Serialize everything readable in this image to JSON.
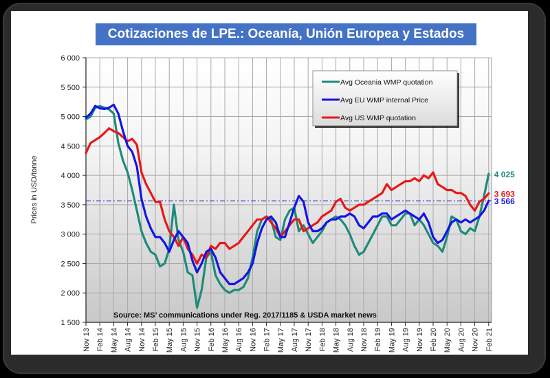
{
  "chart_data": {
    "type": "line",
    "title": "Cotizaciones de LPE.: Oceanía, Unión Europea y  Estados Unidos",
    "xlabel": "",
    "ylabel": "Prices in USD/tonne",
    "ylim": [
      1500,
      6000
    ],
    "yticks": [
      1500,
      2000,
      2500,
      3000,
      3500,
      4000,
      4500,
      5000,
      5500,
      6000
    ],
    "ytick_labels": [
      "1 500",
      "2 000",
      "2 500",
      "3 000",
      "3 500",
      "4 000",
      "4 500",
      "5 000",
      "5 500",
      "6 000"
    ],
    "x_start": "Nov 13",
    "x_end": "Feb 21",
    "xtick_labels": [
      "Nov 13",
      "Feb 14",
      "May 14",
      "Aug 14",
      "Nov 14",
      "Feb 15",
      "May 15",
      "Aug 15",
      "Nov 15",
      "Feb 16",
      "May 16",
      "Aug 16",
      "Nov 16",
      "Feb 17",
      "May 17",
      "Aug 17",
      "Nov 17",
      "Feb 18",
      "May 18",
      "Aug 18",
      "Nov 18",
      "Feb 19",
      "May 19",
      "Aug 19",
      "Nov 19",
      "Feb 20",
      "May 20",
      "Aug 20",
      "Nov 20",
      "Feb 21"
    ],
    "grid": true,
    "legend_position": "top-right",
    "reference_line": {
      "value": 3566,
      "style": "dash-dot",
      "color": "#3b3bd6"
    },
    "series": [
      {
        "name": "Avg Oceania WMP quotation",
        "color": "#1f8a7a",
        "end_label": "4 025",
        "values": [
          4950,
          5000,
          5150,
          5180,
          5150,
          5120,
          5050,
          4550,
          4250,
          4050,
          3750,
          3400,
          3050,
          2850,
          2700,
          2650,
          2450,
          2500,
          2750,
          3500,
          2900,
          2700,
          2350,
          2300,
          1750,
          2050,
          2600,
          2700,
          2300,
          2150,
          2050,
          2000,
          2050,
          2050,
          2100,
          2250,
          2600,
          3050,
          3250,
          3300,
          3250,
          2950,
          2900,
          3250,
          3400,
          3450,
          3050,
          3150,
          3000,
          2850,
          2950,
          3050,
          3200,
          3250,
          3300,
          3250,
          3150,
          3000,
          2800,
          2650,
          2700,
          2850,
          3000,
          3150,
          3300,
          3300,
          3150,
          3150,
          3250,
          3350,
          3350,
          3150,
          3250,
          3150,
          3000,
          2850,
          2800,
          2700,
          2950,
          3300,
          3250,
          3050,
          3000,
          3100,
          3050,
          3300,
          3650,
          4025
        ]
      },
      {
        "name": "Avg EU WMP internal Price",
        "color": "#1414e6",
        "end_label": "3 566",
        "values": [
          4980,
          5050,
          5180,
          5140,
          5130,
          5150,
          5200,
          5050,
          4750,
          4500,
          4400,
          4150,
          3600,
          3300,
          3100,
          2950,
          2950,
          2850,
          2700,
          2900,
          3050,
          2950,
          2850,
          2550,
          2350,
          2500,
          2700,
          2750,
          2600,
          2350,
          2250,
          2150,
          2150,
          2200,
          2250,
          2350,
          2500,
          2850,
          3100,
          3250,
          3300,
          3200,
          2950,
          2950,
          3200,
          3450,
          3650,
          3550,
          3200,
          3050,
          3050,
          3100,
          3200,
          3250,
          3250,
          3300,
          3300,
          3350,
          3300,
          3150,
          3100,
          3200,
          3300,
          3300,
          3350,
          3350,
          3250,
          3300,
          3350,
          3400,
          3350,
          3300,
          3250,
          3350,
          3200,
          2950,
          2850,
          2900,
          3050,
          3200,
          3250,
          3200,
          3250,
          3200,
          3250,
          3300,
          3400,
          3566
        ]
      },
      {
        "name": "Avg US WMP quotation",
        "color": "#e81818",
        "end_label": "3 693",
        "values": [
          4380,
          4550,
          4600,
          4650,
          4720,
          4800,
          4750,
          4720,
          4650,
          4580,
          4620,
          4520,
          4050,
          3850,
          3700,
          3550,
          3550,
          3250,
          3050,
          2950,
          2800,
          2950,
          2750,
          2650,
          2500,
          2650,
          2600,
          2800,
          2750,
          2850,
          2850,
          2750,
          2800,
          2850,
          2950,
          3050,
          3150,
          3250,
          3250,
          3300,
          3200,
          3100,
          2950,
          3050,
          3150,
          3250,
          3250,
          3050,
          3100,
          3150,
          3200,
          3300,
          3350,
          3400,
          3550,
          3600,
          3450,
          3400,
          3450,
          3500,
          3500,
          3550,
          3600,
          3650,
          3700,
          3850,
          3750,
          3800,
          3850,
          3900,
          3900,
          3950,
          3900,
          4000,
          3950,
          4050,
          3850,
          3800,
          3750,
          3750,
          3700,
          3700,
          3650,
          3500,
          3400,
          3550,
          3600,
          3693
        ]
      }
    ],
    "annotation": "Source: MS’ communications under Reg. 2017/1185 & USDA market news"
  }
}
